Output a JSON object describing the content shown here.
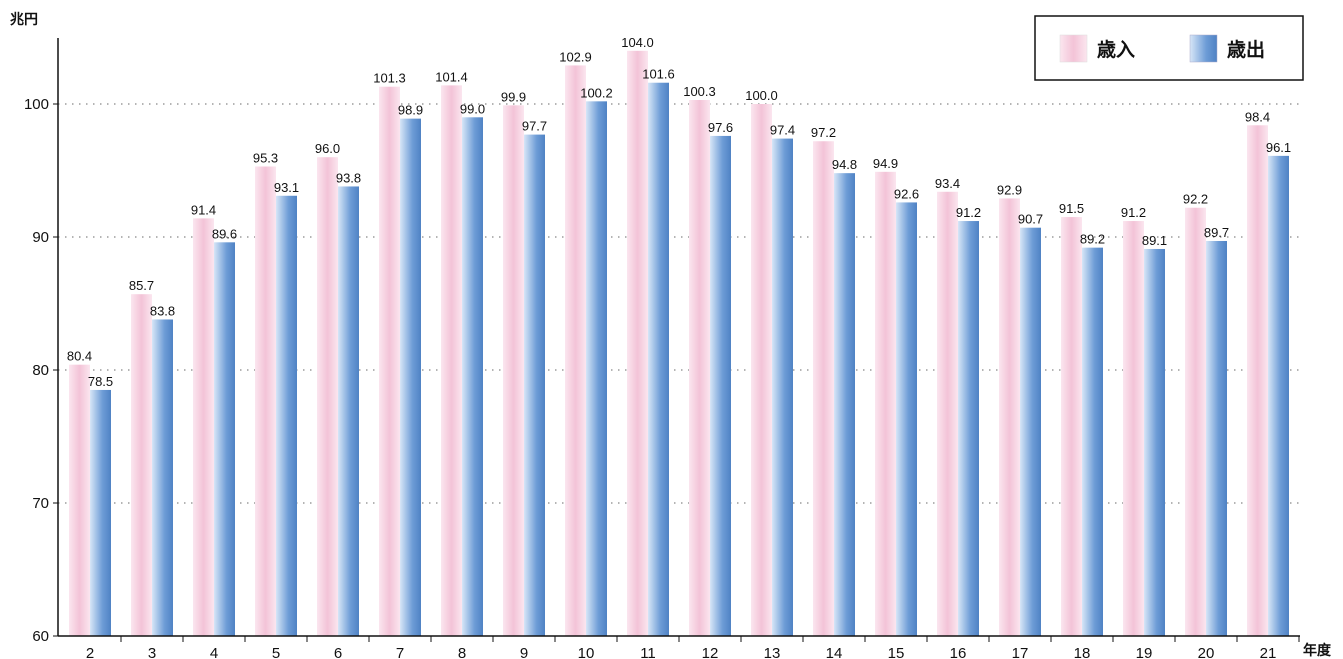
{
  "chart_data": {
    "type": "bar",
    "y_unit": "兆円",
    "x_unit": "年度",
    "categories": [
      "2",
      "3",
      "4",
      "5",
      "6",
      "7",
      "8",
      "9",
      "10",
      "11",
      "12",
      "13",
      "14",
      "15",
      "16",
      "17",
      "18",
      "19",
      "20",
      "21"
    ],
    "series": [
      {
        "name": "歳入",
        "color": "#f4c8dc",
        "values": [
          80.4,
          85.7,
          91.4,
          95.3,
          96.0,
          101.3,
          101.4,
          99.9,
          102.9,
          104.0,
          100.3,
          100.0,
          97.2,
          94.9,
          93.4,
          92.9,
          91.5,
          91.2,
          92.2,
          98.4
        ]
      },
      {
        "name": "歳出",
        "color": "#6e9fd8",
        "values": [
          78.5,
          83.8,
          89.6,
          93.1,
          93.8,
          98.9,
          99.0,
          97.7,
          100.2,
          101.6,
          97.6,
          97.4,
          94.8,
          92.6,
          91.2,
          90.7,
          89.2,
          89.1,
          89.7,
          96.1
        ]
      }
    ],
    "ylim": [
      60,
      105
    ],
    "yticks": [
      "60",
      "70",
      "80",
      "90",
      "100"
    ],
    "grid": "dotted-horizontal",
    "legend_position": "top-right"
  }
}
